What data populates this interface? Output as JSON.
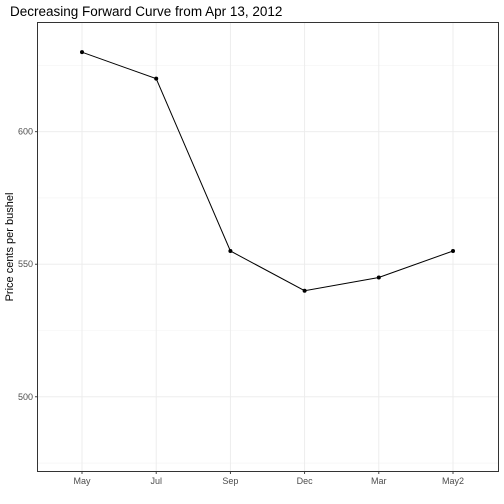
{
  "chart_data": {
    "type": "line",
    "title": "Decreasing Forward Curve from Apr 13, 2012",
    "xlabel": "",
    "ylabel": "Price cents per bushel",
    "categories": [
      "May",
      "Jul",
      "Sep",
      "Dec",
      "Mar",
      "May2"
    ],
    "series": [
      {
        "values": [
          630,
          620,
          555,
          540,
          545,
          555
        ]
      }
    ],
    "ylim": [
      472,
      641
    ],
    "yticks": [
      500,
      550,
      600
    ],
    "grid": true,
    "legend": "none",
    "colors": {
      "line": "#000000",
      "grid": "#ebebeb",
      "border": "#333333"
    }
  }
}
